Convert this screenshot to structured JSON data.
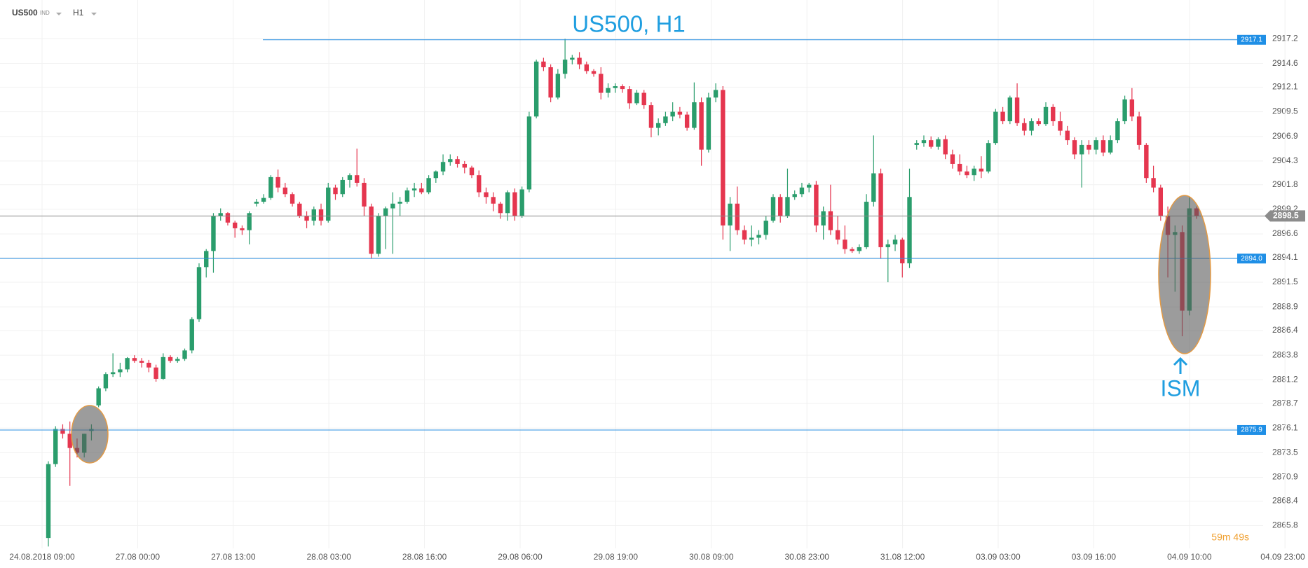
{
  "header": {
    "symbol": "US500",
    "market": "IND",
    "timeframe": "H1"
  },
  "chart_data": {
    "type": "candlestick",
    "title": "US500, H1",
    "annotation": "ISM",
    "timer": "59m 49s",
    "up_color": "#2a9d6c",
    "down_color": "#e5364f",
    "grid": true,
    "ylim": [
      2863.4,
      2921.3
    ],
    "yticks": [
      2917.2,
      2914.6,
      2912.1,
      2909.5,
      2906.9,
      2904.3,
      2901.8,
      2899.2,
      2896.6,
      2894.1,
      2891.5,
      2888.9,
      2886.4,
      2883.8,
      2881.2,
      2878.7,
      2876.1,
      2873.5,
      2870.9,
      2868.4,
      2865.8
    ],
    "xticks": [
      "24.08.2018  09:00",
      "27.08  00:00",
      "27.08  13:00",
      "28.08  03:00",
      "28.08  16:00",
      "29.08  06:00",
      "29.08  19:00",
      "30.08  09:00",
      "30.08  23:00",
      "31.08  12:00",
      "03.09  03:00",
      "03.09  16:00",
      "04.09  10:00",
      "04.09  23:00"
    ],
    "levels": [
      {
        "value": 2917.1,
        "label": "2917.1"
      },
      {
        "value": 2894,
        "label": "2894.0"
      },
      {
        "value": 2875.9,
        "label": "2875.9"
      }
    ],
    "current_price": 2898.5,
    "candles": [
      [
        2864.5,
        2872.6,
        2863.6,
        2872.3
      ],
      [
        2872.3,
        2876.3,
        2872.0,
        2876.0
      ],
      [
        2876.0,
        2876.5,
        2875.0,
        2875.5
      ],
      [
        2875.5,
        2876.8,
        2870.0,
        2874.0
      ],
      [
        2874.0,
        2875.0,
        2873.0,
        2873.5
      ],
      [
        2873.5,
        2875.5,
        2873.0,
        2875.5
      ],
      [
        2875.8,
        2876.5,
        2874.8,
        2876.0
      ],
      [
        2878.5,
        2880.5,
        2878.3,
        2880.3
      ],
      [
        2880.3,
        2882.0,
        2880.0,
        2881.8
      ],
      [
        2881.8,
        2884.0,
        2881.5,
        2882.0
      ],
      [
        2882.0,
        2883.0,
        2881.5,
        2882.3
      ],
      [
        2882.3,
        2883.6,
        2882.0,
        2883.5
      ],
      [
        2883.5,
        2883.8,
        2883.0,
        2883.2
      ],
      [
        2883.2,
        2883.5,
        2882.5,
        2883.0
      ],
      [
        2883.0,
        2883.3,
        2882.0,
        2882.5
      ],
      [
        2882.5,
        2882.8,
        2881.0,
        2881.3
      ],
      [
        2881.3,
        2884.0,
        2881.2,
        2883.6
      ],
      [
        2883.6,
        2883.8,
        2883.0,
        2883.2
      ],
      [
        2883.2,
        2883.6,
        2883.0,
        2883.4
      ],
      [
        2883.4,
        2884.5,
        2883.2,
        2884.3
      ],
      [
        2884.3,
        2887.8,
        2884.0,
        2887.6
      ],
      [
        2887.6,
        2893.5,
        2887.3,
        2893.1
      ],
      [
        2893.1,
        2895.0,
        2892.0,
        2894.8
      ],
      [
        2894.8,
        2898.8,
        2892.5,
        2898.5
      ],
      [
        2898.5,
        2899.3,
        2898.0,
        2898.8
      ],
      [
        2898.8,
        2898.9,
        2897.5,
        2897.8
      ],
      [
        2897.8,
        2898.0,
        2896.2,
        2897.2
      ],
      [
        2897.2,
        2897.5,
        2896.5,
        2897.0
      ],
      [
        2897.0,
        2899.0,
        2895.5,
        2898.8
      ],
      [
        2899.8,
        2900.3,
        2899.5,
        2900.0
      ],
      [
        2900.0,
        2900.8,
        2899.8,
        2900.4
      ],
      [
        2900.4,
        2902.8,
        2900.2,
        2902.6
      ],
      [
        2902.6,
        2903.4,
        2901.0,
        2901.5
      ],
      [
        2901.5,
        2902.0,
        2900.5,
        2900.8
      ],
      [
        2900.8,
        2901.0,
        2899.5,
        2899.8
      ],
      [
        2899.8,
        2900.0,
        2898.3,
        2898.5
      ],
      [
        2898.5,
        2899.0,
        2897.2,
        2898.0
      ],
      [
        2898.0,
        2899.5,
        2897.5,
        2899.2
      ],
      [
        2899.2,
        2899.8,
        2897.5,
        2898.0
      ],
      [
        2898.0,
        2902.0,
        2897.8,
        2901.5
      ],
      [
        2901.5,
        2901.8,
        2900.2,
        2900.8
      ],
      [
        2900.8,
        2902.6,
        2900.5,
        2902.3
      ],
      [
        2902.3,
        2903.0,
        2901.5,
        2902.8
      ],
      [
        2902.8,
        2905.6,
        2901.6,
        2902.0
      ],
      [
        2902.0,
        2902.5,
        2898.5,
        2899.5
      ],
      [
        2899.5,
        2899.8,
        2894.0,
        2894.5
      ],
      [
        2894.5,
        2898.8,
        2894.2,
        2898.5
      ],
      [
        2898.5,
        2899.5,
        2895.0,
        2899.3
      ],
      [
        2899.3,
        2901.0,
        2894.5,
        2899.8
      ],
      [
        2899.8,
        2900.5,
        2898.5,
        2900.0
      ],
      [
        2900.0,
        2901.5,
        2899.8,
        2901.2
      ],
      [
        2901.2,
        2902.0,
        2900.5,
        2901.4
      ],
      [
        2901.4,
        2902.0,
        2900.8,
        2901.0
      ],
      [
        2901.0,
        2902.8,
        2900.8,
        2902.5
      ],
      [
        2902.5,
        2903.3,
        2902.0,
        2903.2
      ],
      [
        2903.2,
        2905.0,
        2902.8,
        2904.2
      ],
      [
        2904.2,
        2905.0,
        2903.8,
        2904.5
      ],
      [
        2904.5,
        2904.8,
        2903.6,
        2904.0
      ],
      [
        2904.0,
        2904.3,
        2903.0,
        2903.6
      ],
      [
        2903.6,
        2903.8,
        2902.5,
        2902.8
      ],
      [
        2902.8,
        2903.3,
        2900.5,
        2901.0
      ],
      [
        2901.0,
        2901.5,
        2899.8,
        2900.5
      ],
      [
        2900.5,
        2901.0,
        2899.0,
        2899.8
      ],
      [
        2899.8,
        2900.0,
        2898.2,
        2898.8
      ],
      [
        2898.8,
        2901.2,
        2898.0,
        2901.0
      ],
      [
        2901.0,
        2901.4,
        2898.0,
        2898.5
      ],
      [
        2898.5,
        2901.6,
        2898.3,
        2901.3
      ],
      [
        2901.3,
        2909.5,
        2901.0,
        2909.0
      ],
      [
        2909.0,
        2915.0,
        2908.8,
        2914.8
      ],
      [
        2914.8,
        2915.2,
        2913.8,
        2914.2
      ],
      [
        2914.2,
        2914.5,
        2910.5,
        2911.0
      ],
      [
        2911.0,
        2914.0,
        2910.8,
        2913.5
      ],
      [
        2913.5,
        2917.2,
        2913.0,
        2915.0
      ],
      [
        2915.0,
        2915.5,
        2914.5,
        2915.2
      ],
      [
        2915.2,
        2915.8,
        2914.0,
        2914.5
      ],
      [
        2914.5,
        2914.8,
        2913.5,
        2913.8
      ],
      [
        2913.8,
        2914.0,
        2913.2,
        2913.5
      ],
      [
        2913.5,
        2914.2,
        2910.8,
        2911.5
      ],
      [
        2911.5,
        2912.5,
        2911.0,
        2912.0
      ],
      [
        2912.0,
        2912.5,
        2911.5,
        2912.2
      ],
      [
        2912.2,
        2912.4,
        2911.5,
        2911.9
      ],
      [
        2911.9,
        2912.2,
        2909.8,
        2910.4
      ],
      [
        2910.4,
        2911.8,
        2910.2,
        2911.5
      ],
      [
        2911.5,
        2911.8,
        2909.8,
        2910.2
      ],
      [
        2910.2,
        2910.5,
        2906.8,
        2907.8
      ],
      [
        2907.8,
        2908.8,
        2907.0,
        2908.3
      ],
      [
        2908.3,
        2909.5,
        2908.0,
        2909.0
      ],
      [
        2909.0,
        2910.5,
        2908.5,
        2909.5
      ],
      [
        2909.5,
        2910.0,
        2908.8,
        2909.2
      ],
      [
        2909.2,
        2909.5,
        2907.5,
        2907.8
      ],
      [
        2907.8,
        2912.6,
        2907.6,
        2910.5
      ],
      [
        2910.5,
        2911.0,
        2903.8,
        2905.5
      ],
      [
        2905.5,
        2911.5,
        2905.2,
        2911.0
      ],
      [
        2911.0,
        2912.5,
        2910.5,
        2911.8
      ],
      [
        2911.8,
        2912.2,
        2896.0,
        2897.5
      ],
      [
        2897.5,
        2900.5,
        2894.8,
        2899.8
      ],
      [
        2899.8,
        2901.6,
        2896.5,
        2897.0
      ],
      [
        2897.0,
        2897.5,
        2895.5,
        2896.0
      ],
      [
        2896.0,
        2897.5,
        2895.3,
        2896.2
      ],
      [
        2896.2,
        2897.0,
        2895.5,
        2896.5
      ],
      [
        2896.5,
        2898.5,
        2896.0,
        2898.0
      ],
      [
        2898.0,
        2900.8,
        2897.8,
        2900.5
      ],
      [
        2900.5,
        2900.8,
        2897.8,
        2898.5
      ],
      [
        2898.5,
        2903.5,
        2898.3,
        2900.5
      ],
      [
        2900.5,
        2901.2,
        2900.2,
        2900.8
      ],
      [
        2900.8,
        2902.0,
        2900.5,
        2901.5
      ],
      [
        2901.5,
        2902.0,
        2901.0,
        2901.8
      ],
      [
        2901.8,
        2902.2,
        2896.8,
        2897.5
      ],
      [
        2897.5,
        2899.5,
        2896.0,
        2899.0
      ],
      [
        2899.0,
        2901.8,
        2896.5,
        2897.0
      ],
      [
        2897.0,
        2898.5,
        2895.5,
        2896.0
      ],
      [
        2896.0,
        2897.5,
        2894.5,
        2895.0
      ],
      [
        2895.0,
        2895.2,
        2894.6,
        2894.8
      ],
      [
        2894.8,
        2895.5,
        2894.5,
        2895.2
      ],
      [
        2895.2,
        2900.8,
        2895.0,
        2900.0
      ],
      [
        2900.0,
        2907.0,
        2899.5,
        2903.0
      ],
      [
        2903.0,
        2903.5,
        2894.0,
        2895.2
      ],
      [
        2895.2,
        2896.0,
        2891.5,
        2895.5
      ],
      [
        2895.5,
        2896.5,
        2894.8,
        2896.0
      ],
      [
        2896.0,
        2896.2,
        2892.0,
        2893.5
      ],
      [
        2893.5,
        2903.5,
        2893.0,
        2900.5
      ],
      [
        2906.0,
        2906.5,
        2905.5,
        2906.2
      ],
      [
        2906.2,
        2907.0,
        2905.8,
        2906.5
      ],
      [
        2906.5,
        2906.9,
        2905.6,
        2905.8
      ],
      [
        2905.8,
        2906.8,
        2905.5,
        2906.6
      ],
      [
        2906.6,
        2907.0,
        2904.5,
        2905.0
      ],
      [
        2905.0,
        2905.5,
        2903.5,
        2904.0
      ],
      [
        2904.0,
        2905.0,
        2902.8,
        2903.2
      ],
      [
        2903.2,
        2903.8,
        2902.5,
        2902.8
      ],
      [
        2902.8,
        2903.8,
        2902.2,
        2903.5
      ],
      [
        2903.5,
        2904.8,
        2902.5,
        2903.2
      ],
      [
        2903.2,
        2906.5,
        2903.0,
        2906.2
      ],
      [
        2906.2,
        2909.8,
        2906.0,
        2909.5
      ],
      [
        2909.5,
        2910.0,
        2908.2,
        2908.5
      ],
      [
        2908.5,
        2911.2,
        2908.2,
        2911.0
      ],
      [
        2911.0,
        2912.5,
        2908.0,
        2908.3
      ],
      [
        2908.3,
        2908.8,
        2907.0,
        2907.5
      ],
      [
        2907.5,
        2908.8,
        2907.0,
        2908.5
      ],
      [
        2908.5,
        2908.8,
        2908.0,
        2908.2
      ],
      [
        2908.2,
        2910.5,
        2908.0,
        2910.0
      ],
      [
        2910.0,
        2910.3,
        2908.0,
        2908.5
      ],
      [
        2908.5,
        2909.5,
        2907.0,
        2907.5
      ],
      [
        2907.5,
        2908.0,
        2906.0,
        2906.5
      ],
      [
        2906.5,
        2906.8,
        2904.5,
        2905.0
      ],
      [
        2905.0,
        2906.5,
        2901.5,
        2906.0
      ],
      [
        2906.0,
        2906.5,
        2905.0,
        2905.5
      ],
      [
        2905.5,
        2906.8,
        2905.0,
        2906.5
      ],
      [
        2906.5,
        2907.0,
        2904.8,
        2905.2
      ],
      [
        2905.2,
        2907.0,
        2905.0,
        2906.5
      ],
      [
        2906.5,
        2908.8,
        2906.2,
        2908.5
      ],
      [
        2908.5,
        2911.2,
        2908.2,
        2910.8
      ],
      [
        2910.8,
        2912.0,
        2908.5,
        2909.0
      ],
      [
        2909.0,
        2909.5,
        2905.5,
        2906.0
      ],
      [
        2906.0,
        2906.2,
        2902.0,
        2902.5
      ],
      [
        2902.5,
        2903.8,
        2901.0,
        2901.5
      ],
      [
        2901.5,
        2901.8,
        2898.0,
        2898.5
      ],
      [
        2898.5,
        2899.5,
        2892.0,
        2896.5
      ],
      [
        2896.5,
        2897.5,
        2890.5,
        2896.8
      ],
      [
        2896.8,
        2897.5,
        2885.8,
        2888.5
      ],
      [
        2888.5,
        2900.5,
        2888.0,
        2899.3
      ],
      [
        2899.3,
        2899.5,
        2898.2,
        2898.5
      ]
    ]
  }
}
